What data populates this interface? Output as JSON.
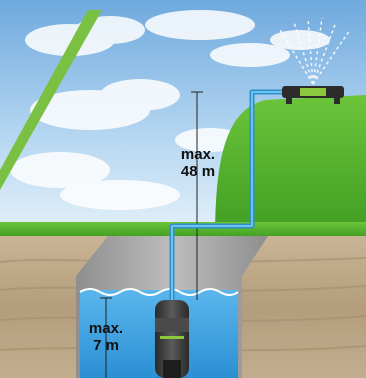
{
  "scene": {
    "description_tag": "",
    "colors": {
      "sky_top": "#7fb6e6",
      "sky_bottom": "#d9ecf8",
      "grass": "#56b82e",
      "grass_dark": "#3d9a1f",
      "soil": "#bfa98a",
      "soil_dark": "#9c8468",
      "well_wall": "#a4a4a4",
      "water": "#3aa3e3",
      "pipe": "#3a9fd6",
      "pump_body": "#3b3b3b",
      "pump_accent": "#8dc63f",
      "green_stripe": "#7ac143"
    },
    "icons": {
      "sprinkler": "sprinkler-icon",
      "pump": "submersible-pump-icon"
    }
  },
  "labels": {
    "head_height": {
      "line1": "max.",
      "line2": "48 m"
    },
    "immersion_depth": {
      "line1": "max.",
      "line2": "7 m"
    }
  }
}
